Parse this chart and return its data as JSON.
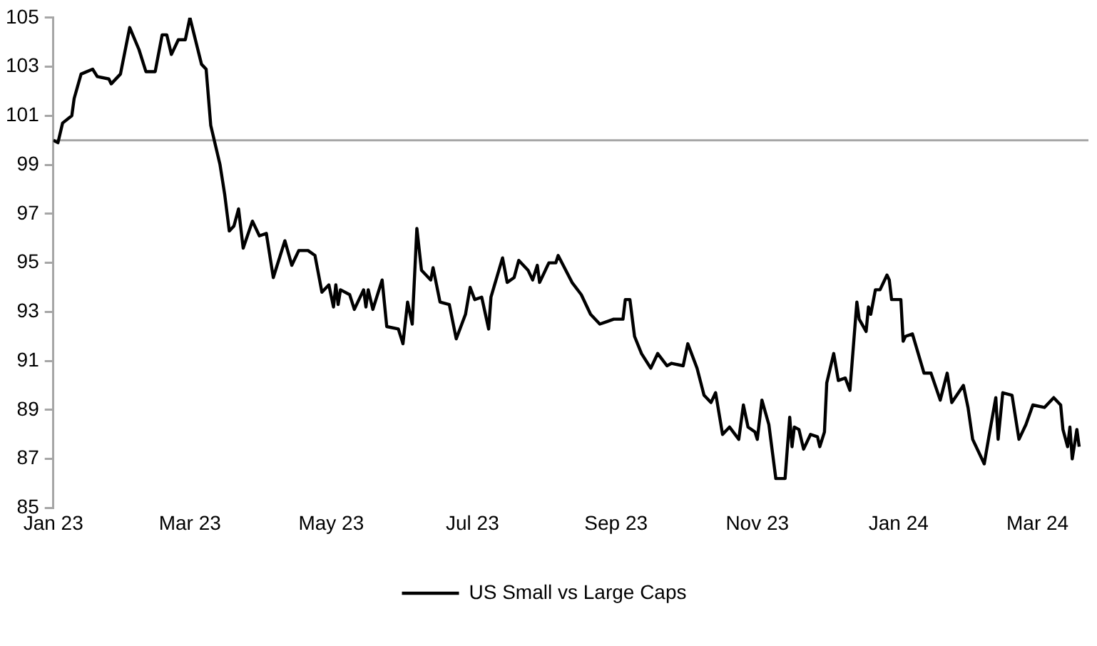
{
  "chart_data": {
    "type": "line",
    "x": [
      "2023-01-01",
      "2023-01-03",
      "2023-01-05",
      "2023-01-09",
      "2023-01-10",
      "2023-01-13",
      "2023-01-18",
      "2023-01-20",
      "2023-01-25",
      "2023-01-26",
      "2023-01-30",
      "2023-02-03",
      "2023-02-07",
      "2023-02-10",
      "2023-02-14",
      "2023-02-17",
      "2023-02-19",
      "2023-02-21",
      "2023-02-24",
      "2023-02-27",
      "2023-03-01",
      "2023-03-06",
      "2023-03-08",
      "2023-03-10",
      "2023-03-14",
      "2023-03-16",
      "2023-03-18",
      "2023-03-20",
      "2023-03-22",
      "2023-03-24",
      "2023-03-28",
      "2023-03-31",
      "2023-04-03",
      "2023-04-06",
      "2023-04-11",
      "2023-04-14",
      "2023-04-17",
      "2023-04-21",
      "2023-04-24",
      "2023-04-27",
      "2023-04-30",
      "2023-05-02",
      "2023-05-03",
      "2023-05-04",
      "2023-05-05",
      "2023-05-09",
      "2023-05-11",
      "2023-05-15",
      "2023-05-16",
      "2023-05-17",
      "2023-05-19",
      "2023-05-23",
      "2023-05-25",
      "2023-05-30",
      "2023-06-01",
      "2023-06-03",
      "2023-06-05",
      "2023-06-07",
      "2023-06-09",
      "2023-06-13",
      "2023-06-14",
      "2023-06-17",
      "2023-06-21",
      "2023-06-24",
      "2023-06-28",
      "2023-06-30",
      "2023-07-02",
      "2023-07-05",
      "2023-07-08",
      "2023-07-09",
      "2023-07-14",
      "2023-07-16",
      "2023-07-19",
      "2023-07-21",
      "2023-07-25",
      "2023-07-27",
      "2023-07-29",
      "2023-07-30",
      "2023-08-03",
      "2023-08-06",
      "2023-08-07",
      "2023-08-13",
      "2023-08-17",
      "2023-08-21",
      "2023-08-25",
      "2023-08-28",
      "2023-08-31",
      "2023-09-04",
      "2023-09-05",
      "2023-09-07",
      "2023-09-09",
      "2023-09-12",
      "2023-09-16",
      "2023-09-19",
      "2023-09-23",
      "2023-09-25",
      "2023-09-30",
      "2023-10-02",
      "2023-10-06",
      "2023-10-09",
      "2023-10-12",
      "2023-10-14",
      "2023-10-17",
      "2023-10-20",
      "2023-10-24",
      "2023-10-26",
      "2023-10-28",
      "2023-10-31",
      "2023-11-01",
      "2023-11-03",
      "2023-11-06",
      "2023-11-09",
      "2023-11-13",
      "2023-11-15",
      "2023-11-16",
      "2023-11-17",
      "2023-11-19",
      "2023-11-21",
      "2023-11-24",
      "2023-11-27",
      "2023-11-28",
      "2023-11-30",
      "2023-12-01",
      "2023-12-04",
      "2023-12-06",
      "2023-12-09",
      "2023-12-11",
      "2023-12-14",
      "2023-12-15",
      "2023-12-18",
      "2023-12-19",
      "2023-12-20",
      "2023-12-22",
      "2023-12-24",
      "2023-12-27",
      "2023-12-28",
      "2023-12-29",
      "2024-01-02",
      "2024-01-03",
      "2024-01-04",
      "2024-01-07",
      "2024-01-12",
      "2024-01-15",
      "2024-01-19",
      "2024-01-22",
      "2024-01-24",
      "2024-01-29",
      "2024-01-31",
      "2024-02-02",
      "2024-02-05",
      "2024-02-07",
      "2024-02-09",
      "2024-02-12",
      "2024-02-13",
      "2024-02-15",
      "2024-02-19",
      "2024-02-22",
      "2024-02-25",
      "2024-02-28",
      "2024-03-04",
      "2024-03-08",
      "2024-03-11",
      "2024-03-12",
      "2024-03-14",
      "2024-03-15",
      "2024-03-16",
      "2024-03-18",
      "2024-03-19"
    ],
    "series": [
      {
        "name": "US Small vs Large Caps",
        "color": "#000000",
        "values": [
          100.0,
          99.9,
          100.7,
          101.0,
          101.7,
          102.7,
          102.9,
          102.6,
          102.5,
          102.3,
          102.7,
          104.6,
          103.7,
          102.8,
          102.8,
          104.3,
          104.3,
          103.5,
          104.1,
          104.1,
          105.0,
          103.1,
          102.9,
          100.6,
          99.0,
          97.8,
          96.3,
          96.5,
          97.2,
          95.6,
          96.7,
          96.1,
          96.2,
          94.4,
          95.9,
          94.9,
          95.5,
          95.5,
          95.3,
          93.8,
          94.1,
          93.2,
          94.1,
          93.3,
          93.9,
          93.7,
          93.1,
          93.9,
          93.2,
          93.9,
          93.1,
          94.3,
          92.4,
          92.3,
          91.7,
          93.4,
          92.5,
          96.4,
          94.7,
          94.3,
          94.8,
          93.4,
          93.3,
          91.9,
          92.9,
          94.0,
          93.5,
          93.6,
          92.3,
          93.6,
          95.2,
          94.2,
          94.4,
          95.1,
          94.7,
          94.3,
          94.9,
          94.2,
          95.0,
          95.0,
          95.3,
          94.2,
          93.7,
          92.9,
          92.5,
          92.6,
          92.7,
          92.7,
          93.5,
          93.5,
          92.0,
          91.3,
          90.7,
          91.3,
          90.8,
          90.9,
          90.8,
          91.7,
          90.7,
          89.6,
          89.3,
          89.7,
          88.0,
          88.3,
          87.8,
          89.2,
          88.3,
          88.1,
          87.8,
          89.4,
          88.4,
          86.2,
          86.2,
          88.7,
          87.5,
          88.3,
          88.2,
          87.4,
          88.0,
          87.9,
          87.5,
          88.1,
          90.1,
          91.3,
          90.2,
          90.3,
          89.8,
          93.4,
          92.7,
          92.2,
          93.2,
          92.9,
          93.9,
          93.9,
          94.5,
          94.3,
          93.5,
          93.5,
          91.8,
          92.0,
          92.1,
          90.5,
          90.5,
          89.4,
          90.5,
          89.3,
          90.0,
          89.1,
          87.8,
          87.2,
          86.8,
          87.9,
          89.5,
          87.8,
          89.7,
          89.6,
          87.8,
          88.4,
          89.2,
          89.1,
          89.5,
          89.2,
          88.2,
          87.5,
          88.3,
          87.0,
          88.2,
          87.5
        ]
      }
    ],
    "xlim": [
      "2023-01-01",
      "2024-03-23"
    ],
    "xticks": [
      {
        "value": "2023-01-01",
        "label": "Jan 23"
      },
      {
        "value": "2023-03-01",
        "label": "Mar 23"
      },
      {
        "value": "2023-05-01",
        "label": "May 23"
      },
      {
        "value": "2023-07-01",
        "label": "Jul 23"
      },
      {
        "value": "2023-09-01",
        "label": "Sep 23"
      },
      {
        "value": "2023-11-01",
        "label": "Nov 23"
      },
      {
        "value": "2024-01-01",
        "label": "Jan 24"
      },
      {
        "value": "2024-03-01",
        "label": "Mar 24"
      }
    ],
    "ylim": [
      85,
      105
    ],
    "yticks": [
      85,
      87,
      89,
      91,
      93,
      95,
      97,
      99,
      101,
      103,
      105
    ],
    "ref_lines": [
      {
        "axis": "y",
        "value": 100,
        "color": "#a6a6a6"
      }
    ],
    "legend": "bottom",
    "marker": "none",
    "line_style": "solid",
    "grid": false
  }
}
